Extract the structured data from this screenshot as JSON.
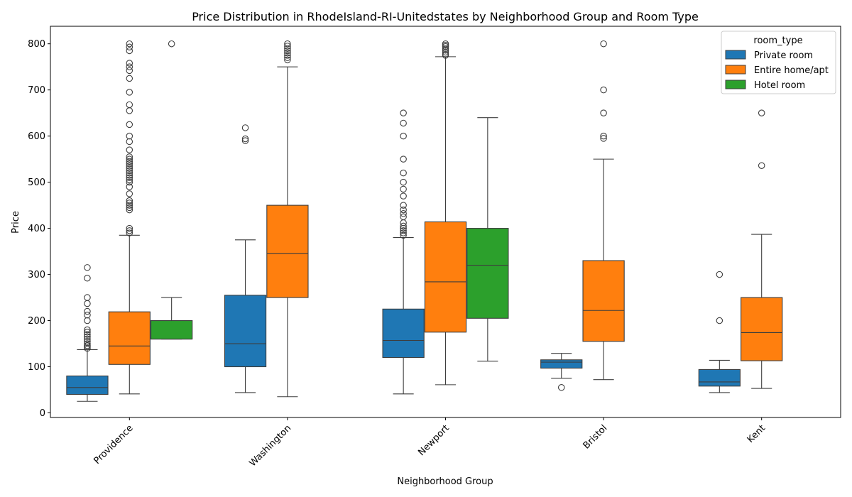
{
  "chart_data": {
    "type": "box",
    "title": "Price Distribution in RhodeIsland-RI-Unitedstates by Neighborhood Group and Room Type",
    "xlabel": "Neighborhood Group",
    "ylabel": "Price",
    "ylim": [
      -10,
      838
    ],
    "yticks": [
      0,
      100,
      200,
      300,
      400,
      500,
      600,
      700,
      800
    ],
    "categories": [
      "Providence",
      "Washington",
      "Newport",
      "Bristol",
      "Kent"
    ],
    "legend": {
      "title": "room_type",
      "position": "top-right"
    },
    "series": [
      {
        "name": "Private room",
        "color": "#1f77b4",
        "boxes": [
          {
            "category": "Providence",
            "whisker_low": 25,
            "q1": 40,
            "median": 55,
            "q3": 80,
            "whisker_high": 137,
            "outliers": [
              140,
              143,
              146,
              150,
              155,
              160,
              165,
              170,
              175,
              180,
              200,
              212,
              220,
              237,
              250,
              292,
              315
            ]
          },
          {
            "category": "Washington",
            "whisker_low": 44,
            "q1": 100,
            "median": 150,
            "q3": 255,
            "whisker_high": 375,
            "outliers": [
              590,
              594,
              618
            ]
          },
          {
            "category": "Newport",
            "whisker_low": 41,
            "q1": 120,
            "median": 157,
            "q3": 225,
            "whisker_high": 380,
            "outliers": [
              385,
              390,
              395,
              400,
              405,
              412,
              425,
              432,
              440,
              450,
              470,
              485,
              500,
              520,
              550,
              600,
              628,
              650
            ]
          },
          {
            "category": "Bristol",
            "whisker_low": 75,
            "q1": 97,
            "median": 110,
            "q3": 115,
            "whisker_high": 129,
            "outliers": [
              55
            ]
          },
          {
            "category": "Kent",
            "whisker_low": 44,
            "q1": 58,
            "median": 67,
            "q3": 94,
            "whisker_high": 114,
            "outliers": [
              200,
              300
            ]
          }
        ]
      },
      {
        "name": "Entire home/apt",
        "color": "#ff7f0e",
        "boxes": [
          {
            "category": "Providence",
            "whisker_low": 41,
            "q1": 105,
            "median": 145,
            "q3": 219,
            "whisker_high": 385,
            "outliers": [
              390,
              395,
              400,
              440,
              445,
              450,
              455,
              460,
              475,
              490,
              500,
              505,
              510,
              515,
              520,
              525,
              530,
              535,
              540,
              545,
              550,
              555,
              570,
              588,
              600,
              625,
              655,
              668,
              695,
              725,
              742,
              750,
              758,
              785,
              793,
              800
            ]
          },
          {
            "category": "Washington",
            "whisker_low": 35,
            "q1": 250,
            "median": 345,
            "q3": 450,
            "whisker_high": 750,
            "outliers": [
              765,
              770,
              775,
              780,
              785,
              790,
              795,
              800
            ]
          },
          {
            "category": "Newport",
            "whisker_low": 61,
            "q1": 175,
            "median": 284,
            "q3": 414,
            "whisker_high": 772,
            "outliers": [
              775,
              778,
              782,
              786,
              790,
              794,
              797,
              800
            ]
          },
          {
            "category": "Bristol",
            "whisker_low": 72,
            "q1": 155,
            "median": 222,
            "q3": 330,
            "whisker_high": 550,
            "outliers": [
              595,
              600,
              650,
              700,
              800
            ]
          },
          {
            "category": "Kent",
            "whisker_low": 53,
            "q1": 113,
            "median": 174,
            "q3": 250,
            "whisker_high": 387,
            "outliers": [
              536,
              650
            ]
          }
        ]
      },
      {
        "name": "Hotel room",
        "color": "#2ca02c",
        "boxes": [
          {
            "category": "Providence",
            "whisker_low": 160,
            "q1": 160,
            "median": 160,
            "q3": 200,
            "whisker_high": 250,
            "outliers": [
              800
            ]
          },
          {
            "category": "Newport",
            "whisker_low": 112,
            "q1": 205,
            "median": 320,
            "q3": 400,
            "whisker_high": 640,
            "outliers": []
          }
        ]
      }
    ]
  }
}
